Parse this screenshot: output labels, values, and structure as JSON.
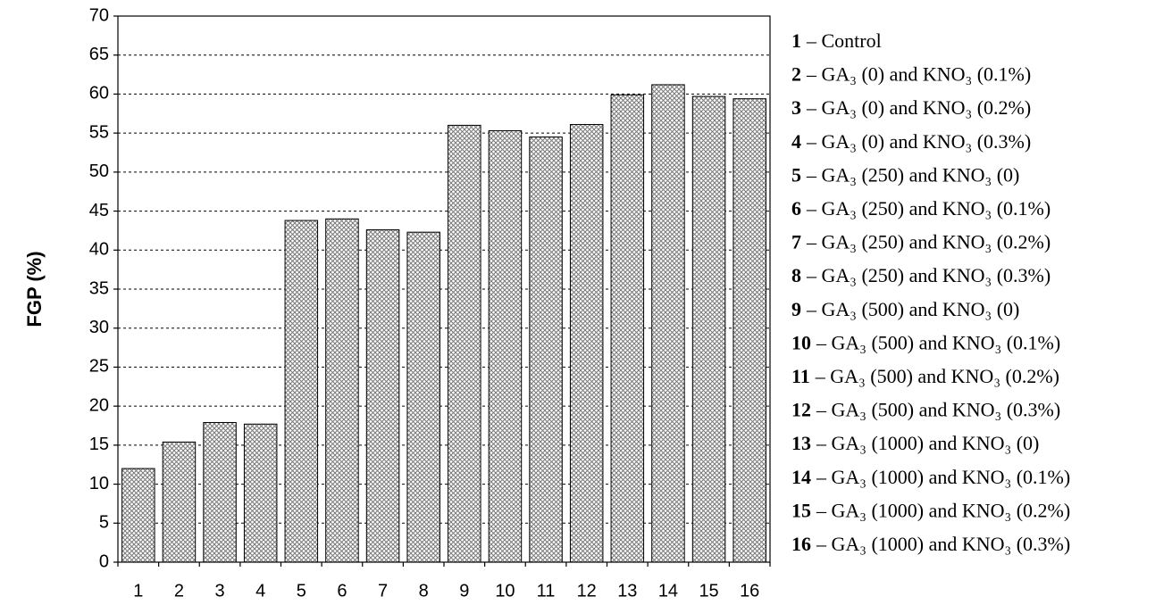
{
  "chart_data": {
    "type": "bar",
    "y_label": "FGP (%)",
    "categories": [
      "1",
      "2",
      "3",
      "4",
      "5",
      "6",
      "7",
      "8",
      "9",
      "10",
      "11",
      "12",
      "13",
      "14",
      "15",
      "16"
    ],
    "values": [
      12.0,
      15.4,
      17.9,
      17.7,
      43.8,
      44.0,
      42.6,
      42.3,
      56.0,
      55.3,
      54.5,
      56.1,
      59.9,
      61.2,
      59.7,
      59.4
    ],
    "color": "#7a7a7a",
    "ylim": [
      0,
      70
    ],
    "yticks": [
      0,
      5,
      10,
      15,
      20,
      25,
      30,
      35,
      40,
      45,
      50,
      55,
      60,
      65,
      70
    ],
    "grid": true,
    "legend": [
      "– Control",
      "– GA₃ (0) and KNO₃ (0.1%)",
      "– GA₃ (0) and KNO₃ (0.2%)",
      "– GA₃ (0) and KNO₃ (0.3%)",
      "– GA₃ (250) and KNO₃ (0)",
      "– GA₃ (250) and KNO₃ (0.1%)",
      "– GA₃ (250) and KNO₃ (0.2%)",
      "– GA₃ (250) and KNO₃ (0.3%)",
      "– GA₃ (500) and KNO₃ (0)",
      "– GA₃ (500) and KNO₃ (0.1%)",
      "– GA₃ (500) and KNO₃ (0.2%)",
      "– GA₃ (500) and KNO₃ (0.3%)",
      "– GA₃ (1000) and KNO₃ (0)",
      "– GA₃ (1000) and KNO₃ (0.1%)",
      "– GA₃ (1000) and KNO₃ (0.2%)",
      "– GA₃ (1000) and KNO₃ (0.3%)"
    ]
  }
}
